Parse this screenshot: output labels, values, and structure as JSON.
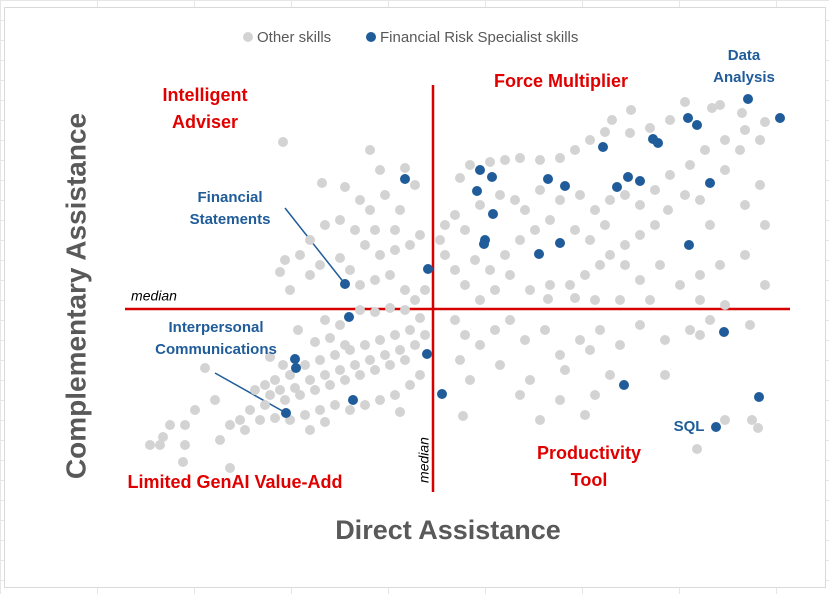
{
  "chart_data": {
    "type": "scatter",
    "series": [
      {
        "name": "Other skills",
        "color": "#d3d3d3",
        "x": [
          531,
          585,
          620,
          642,
          665,
          612,
          570,
          550,
          530,
          512,
          505,
          490,
          475,
          460,
          440,
          420,
          405,
          390,
          370,
          360,
          380,
          400,
          415,
          425,
          440,
          460,
          480,
          495,
          510,
          525,
          540,
          555,
          570,
          590,
          605,
          625,
          645,
          660,
          640,
          625,
          600,
          585,
          568,
          555,
          540,
          525,
          510,
          500,
          485,
          470,
          450,
          430,
          410,
          395,
          380,
          365,
          355,
          345,
          340,
          345,
          355,
          365,
          375,
          390,
          405,
          420,
          435,
          450,
          475,
          490,
          505,
          525,
          540,
          560,
          580,
          600,
          620,
          645,
          665,
          665,
          645,
          660,
          610,
          600,
          550,
          520,
          495,
          475,
          448,
          355,
          365,
          380,
          395,
          410,
          425,
          445,
          460,
          480,
          500,
          520,
          540,
          565,
          590,
          610,
          625,
          400,
          430,
          465,
          490,
          510,
          565,
          495,
          460,
          420,
          370,
          360,
          363,
          440,
          485,
          650,
          625,
          652,
          658,
          597,
          600,
          183,
          222,
          245,
          270,
          280,
          285,
          300,
          305,
          315,
          320,
          310,
          295,
          280,
          265,
          255,
          240,
          225,
          210,
          200,
          185,
          180,
          190,
          210,
          220,
          240,
          250,
          260,
          275,
          290,
          305,
          315,
          325,
          295,
          270,
          260,
          275,
          225,
          240,
          260,
          275,
          290,
          305,
          320,
          310,
          295,
          280,
          265,
          250,
          235,
          220,
          205,
          190,
          175,
          165,
          155,
          170,
          185,
          200,
          215,
          230,
          245,
          260,
          275,
          290,
          305,
          315,
          325,
          300,
          285,
          270,
          255,
          240,
          225,
          210,
          195,
          180,
          165,
          150,
          140,
          130,
          120,
          115,
          105,
          95,
          85,
          70,
          60,
          50,
          63,
          85,
          83,
          130,
          145,
          160,
          175,
          190,
          205,
          220,
          235,
          250,
          265,
          280,
          295,
          310,
          320,
          198,
          215,
          230,
          245,
          300,
          210,
          225,
          170,
          183
        ],
        "y": [
          390,
          398,
          395,
          387,
          378,
          392,
          380,
          372,
          367,
          380,
          368,
          360,
          350,
          342,
          340,
          342,
          340,
          338,
          335,
          322,
          295,
          305,
          300,
          290,
          310,
          300,
          305,
          290,
          300,
          305,
          295,
          310,
          325,
          335,
          350,
          360,
          370,
          360,
          350,
          330,
          300,
          305,
          290,
          275,
          265,
          255,
          245,
          235,
          225,
          215,
          215,
          210,
          225,
          210,
          200,
          215,
          230,
          245,
          260,
          275,
          285,
          270,
          240,
          230,
          245,
          260,
          270,
          280,
          270,
          260,
          275,
          235,
          220,
          235,
          215,
          225,
          235,
          245,
          215,
          275,
          295,
          315,
          275,
          200,
          200,
          200,
          200,
          202,
          201,
          180,
          165,
          155,
          170,
          180,
          160,
          170,
          145,
          160,
          170,
          155,
          175,
          160,
          170,
          180,
          195,
          135,
          120,
          130,
          150,
          125,
          125,
          105,
          100,
          105,
          120,
          140,
          84,
          80,
          85,
          175,
          80,
          80,
          72,
          51,
          165,
          358,
          317,
          313,
          350,
          330,
          305,
          290,
          332,
          315,
          265,
          255,
          250,
          245,
          255,
          270,
          280,
          275,
          260,
          245,
          240,
          228,
          210,
          225,
          235,
          242,
          230,
          215,
          220,
          225,
          210,
          200,
          210,
          270,
          290,
          300,
          270,
          180,
          175,
          190,
          188,
          192,
          190,
          182,
          170,
          165,
          160,
          155,
          150,
          145,
          140,
          135,
          125,
          120,
          115,
          110,
          105,
          100,
          105,
          110,
          115,
          120,
          125,
          130,
          135,
          140,
          155,
          165,
          150,
          145,
          140,
          135,
          130,
          125,
          120,
          112,
          110,
          95,
          90,
          80,
          75,
          60,
          100,
          132,
          90,
          75,
          75,
          55,
          55,
          63,
          55,
          38,
          32,
          70,
          80,
          82,
          80,
          85,
          90,
          95,
          90,
          95,
          100,
          105,
          115,
          125,
          170,
          158,
          162,
          155,
          88,
          70,
          78,
          143,
          135
        ]
      },
      {
        "name": "Financial Risk Specialist skills",
        "color": "#1f5c99",
        "x": [
          648,
          680,
          588,
          597,
          553,
          558,
          503,
          380,
          392,
          305,
          448,
          465,
          528,
          540,
          517,
          610,
          377,
          393,
          385,
          384,
          460,
          439,
          589,
          328,
          245,
          249,
          624,
          327,
          195,
          196,
          524,
          342,
          253,
          659,
          186,
          616
        ],
        "y": [
          401,
          382,
          382,
          375,
          361,
          357,
          353,
          330,
          323,
          321,
          321,
          314,
          323,
          319,
          313,
          317,
          309,
          286,
          260,
          256,
          257,
          246,
          255,
          231,
          216,
          183,
          168,
          146,
          141,
          132,
          115,
          106,
          100,
          103,
          87,
          73
        ]
      }
    ],
    "x_label": "Direct Assistance",
    "y_label": "Complementary Assistance",
    "xlim": [
      25,
      690
    ],
    "ylim": [
      5,
      415
    ],
    "x_median": 333,
    "y_median": 191,
    "median_label": "median",
    "median_color": "#d60000",
    "quadrant_labels": [
      {
        "lines": [
          "Intelligent",
          "Adviser"
        ]
      },
      {
        "lines": [
          "Force Multiplier"
        ]
      },
      {
        "lines": [
          "Limited GenAI Value-Add"
        ]
      },
      {
        "lines": [
          "Productivity",
          "Tool"
        ]
      }
    ],
    "point_labels": [
      {
        "lines": [
          "Data",
          "Analysis"
        ]
      },
      {
        "lines": [
          "Financial",
          "Statements"
        ]
      },
      {
        "lines": [
          "Interpersonal",
          "Communications"
        ]
      },
      {
        "lines": [
          "SQL"
        ]
      }
    ],
    "legend": "top"
  }
}
